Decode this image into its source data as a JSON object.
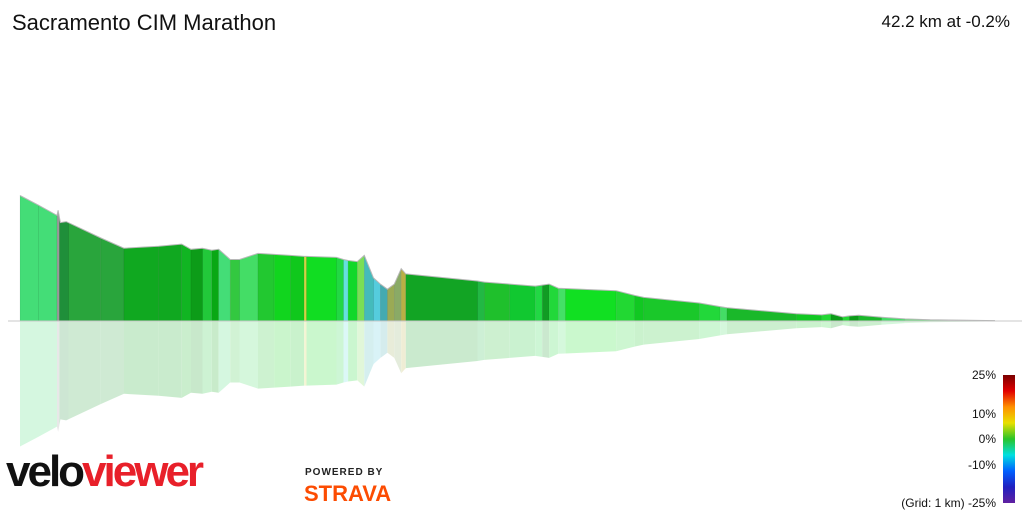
{
  "header": {
    "title": "Sacramento CIM Marathon",
    "summary": "42.2 km at -0.2%"
  },
  "branding": {
    "logo_part1": "velo",
    "logo_part2": "viewer",
    "powered_by": "POWERED BY",
    "strava": "STRAVA"
  },
  "legend": {
    "ticks": [
      "25%",
      "10%",
      "0%",
      "-10%",
      "-25%"
    ],
    "grid_note": "(Grid: 1 km)",
    "colors": [
      "#7a0000",
      "#e10000",
      "#ff9000",
      "#e8e000",
      "#29c429",
      "#00e0e0",
      "#0060ff",
      "#2020c0",
      "#6020a0"
    ]
  },
  "chart_data": {
    "type": "area",
    "distance_km": 42.2,
    "average_gradient_pct": -0.2,
    "segments": [
      {
        "start_km": 0.0,
        "end_km": 0.8,
        "gradient_pct": -1.5,
        "color": "#44dd77"
      },
      {
        "start_km": 0.8,
        "end_km": 1.6,
        "gradient_pct": -0.8,
        "color": "#44dd77"
      },
      {
        "start_km": 1.6,
        "end_km": 1.7,
        "gradient_pct": 3.0,
        "color": "#9a9a9a"
      },
      {
        "start_km": 1.7,
        "end_km": 2.1,
        "gradient_pct": -1.0,
        "color": "#1f8f3a"
      },
      {
        "start_km": 2.1,
        "end_km": 3.5,
        "gradient_pct": -1.3,
        "color": "#29a53c"
      },
      {
        "start_km": 3.5,
        "end_km": 4.5,
        "gradient_pct": -1.5,
        "color": "#29a53c"
      },
      {
        "start_km": 4.5,
        "end_km": 6.0,
        "gradient_pct": -0.1,
        "color": "#10a820"
      },
      {
        "start_km": 6.0,
        "end_km": 7.0,
        "gradient_pct": 0.1,
        "color": "#10a820"
      },
      {
        "start_km": 7.0,
        "end_km": 7.4,
        "gradient_pct": -0.8,
        "color": "#11b522"
      },
      {
        "start_km": 7.4,
        "end_km": 7.9,
        "gradient_pct": 0.2,
        "color": "#0c9c18"
      },
      {
        "start_km": 7.9,
        "end_km": 8.3,
        "gradient_pct": -0.5,
        "color": "#22c83a"
      },
      {
        "start_km": 8.3,
        "end_km": 8.6,
        "gradient_pct": 0.1,
        "color": "#09a814"
      },
      {
        "start_km": 8.6,
        "end_km": 9.1,
        "gradient_pct": -1.0,
        "color": "#44dd77"
      },
      {
        "start_km": 9.1,
        "end_km": 9.5,
        "gradient_pct": 0.0,
        "color": "#33c840"
      },
      {
        "start_km": 9.5,
        "end_km": 10.3,
        "gradient_pct": -0.3,
        "color": "#44dd66"
      },
      {
        "start_km": 10.3,
        "end_km": 11.0,
        "gradient_pct": -0.2,
        "color": "#22c830"
      },
      {
        "start_km": 11.0,
        "end_km": 11.7,
        "gradient_pct": -0.1,
        "color": "#11d51e"
      },
      {
        "start_km": 11.7,
        "end_km": 12.3,
        "gradient_pct": 0.0,
        "color": "#10c81c"
      },
      {
        "start_km": 12.3,
        "end_km": 12.4,
        "gradient_pct": 0.0,
        "color": "#d4d440"
      },
      {
        "start_km": 12.4,
        "end_km": 13.7,
        "gradient_pct": -0.1,
        "color": "#11dd22"
      },
      {
        "start_km": 13.7,
        "end_km": 14.0,
        "gradient_pct": -0.5,
        "color": "#22d844"
      },
      {
        "start_km": 14.0,
        "end_km": 14.2,
        "gradient_pct": -3.0,
        "color": "#66e0dd"
      },
      {
        "start_km": 14.2,
        "end_km": 14.6,
        "gradient_pct": -0.3,
        "color": "#11d82a"
      },
      {
        "start_km": 14.6,
        "end_km": 14.9,
        "gradient_pct": 2.0,
        "color": "#7adf55"
      },
      {
        "start_km": 14.9,
        "end_km": 15.3,
        "gradient_pct": -4.0,
        "color": "#44bbbb"
      },
      {
        "start_km": 15.3,
        "end_km": 15.6,
        "gradient_pct": -4.0,
        "color": "#55ccdd"
      },
      {
        "start_km": 15.6,
        "end_km": 15.9,
        "gradient_pct": -3.0,
        "color": "#44aab0"
      },
      {
        "start_km": 15.9,
        "end_km": 16.2,
        "gradient_pct": 0.5,
        "color": "#9aaa55"
      },
      {
        "start_km": 16.2,
        "end_km": 16.5,
        "gradient_pct": 3.0,
        "color": "#8aaa66"
      },
      {
        "start_km": 16.5,
        "end_km": 16.7,
        "gradient_pct": 1.0,
        "color": "#b8b044"
      },
      {
        "start_km": 16.7,
        "end_km": 19.8,
        "gradient_pct": -0.1,
        "color": "#12a424"
      },
      {
        "start_km": 19.8,
        "end_km": 20.1,
        "gradient_pct": -0.3,
        "color": "#22b844"
      },
      {
        "start_km": 20.1,
        "end_km": 21.2,
        "gradient_pct": -0.1,
        "color": "#1fc02c"
      },
      {
        "start_km": 21.2,
        "end_km": 22.3,
        "gradient_pct": 0.1,
        "color": "#11c830"
      },
      {
        "start_km": 22.3,
        "end_km": 22.6,
        "gradient_pct": -0.3,
        "color": "#22d844"
      },
      {
        "start_km": 22.6,
        "end_km": 22.9,
        "gradient_pct": -0.2,
        "color": "#119c24"
      },
      {
        "start_km": 22.9,
        "end_km": 23.3,
        "gradient_pct": 0.2,
        "color": "#22d83a"
      },
      {
        "start_km": 23.3,
        "end_km": 23.6,
        "gradient_pct": -0.3,
        "color": "#44e066"
      },
      {
        "start_km": 23.6,
        "end_km": 25.8,
        "gradient_pct": 0.0,
        "color": "#11e022"
      },
      {
        "start_km": 25.8,
        "end_km": 26.6,
        "gradient_pct": -0.3,
        "color": "#22d833"
      },
      {
        "start_km": 26.6,
        "end_km": 27.0,
        "gradient_pct": -0.2,
        "color": "#11c822"
      },
      {
        "start_km": 27.0,
        "end_km": 29.4,
        "gradient_pct": -0.2,
        "color": "#1ac82a"
      },
      {
        "start_km": 29.4,
        "end_km": 30.3,
        "gradient_pct": -0.1,
        "color": "#22d83a"
      },
      {
        "start_km": 30.3,
        "end_km": 30.6,
        "gradient_pct": -0.4,
        "color": "#44dd66"
      },
      {
        "start_km": 30.6,
        "end_km": 33.6,
        "gradient_pct": -0.2,
        "color": "#1ab82a"
      },
      {
        "start_km": 33.6,
        "end_km": 34.7,
        "gradient_pct": -0.1,
        "color": "#11c822"
      },
      {
        "start_km": 34.7,
        "end_km": 35.1,
        "gradient_pct": 0.1,
        "color": "#22d833"
      },
      {
        "start_km": 35.1,
        "end_km": 35.6,
        "gradient_pct": -0.2,
        "color": "#0c9c18"
      },
      {
        "start_km": 35.6,
        "end_km": 35.9,
        "gradient_pct": 0.0,
        "color": "#22d833"
      },
      {
        "start_km": 35.9,
        "end_km": 36.3,
        "gradient_pct": 0.1,
        "color": "#0c9c18"
      },
      {
        "start_km": 36.3,
        "end_km": 37.3,
        "gradient_pct": -0.2,
        "color": "#1ab82a"
      },
      {
        "start_km": 37.3,
        "end_km": 38.3,
        "gradient_pct": -0.1,
        "color": "#44dd66"
      },
      {
        "start_km": 38.3,
        "end_km": 42.2,
        "gradient_pct": -0.05,
        "color": "#66dd77"
      }
    ],
    "profile_points": [
      [
        0.0,
        6.12
      ],
      [
        0.8,
        5.65
      ],
      [
        1.6,
        5.15
      ],
      [
        1.65,
        5.4
      ],
      [
        1.75,
        4.8
      ],
      [
        2.0,
        4.85
      ],
      [
        3.5,
        4.05
      ],
      [
        4.5,
        3.55
      ],
      [
        6.0,
        3.65
      ],
      [
        7.0,
        3.75
      ],
      [
        7.4,
        3.5
      ],
      [
        7.9,
        3.55
      ],
      [
        8.3,
        3.45
      ],
      [
        8.6,
        3.5
      ],
      [
        9.1,
        3.0
      ],
      [
        9.5,
        3.0
      ],
      [
        10.3,
        3.3
      ],
      [
        11.0,
        3.25
      ],
      [
        11.7,
        3.2
      ],
      [
        12.3,
        3.15
      ],
      [
        12.4,
        3.15
      ],
      [
        13.7,
        3.1
      ],
      [
        14.0,
        3.0
      ],
      [
        14.2,
        2.95
      ],
      [
        14.6,
        2.9
      ],
      [
        14.9,
        3.2
      ],
      [
        15.3,
        2.1
      ],
      [
        15.6,
        1.8
      ],
      [
        15.9,
        1.55
      ],
      [
        16.2,
        1.8
      ],
      [
        16.5,
        2.55
      ],
      [
        16.7,
        2.3
      ],
      [
        19.8,
        1.95
      ],
      [
        20.1,
        1.9
      ],
      [
        21.2,
        1.8
      ],
      [
        22.3,
        1.7
      ],
      [
        22.6,
        1.75
      ],
      [
        22.9,
        1.8
      ],
      [
        23.3,
        1.6
      ],
      [
        25.8,
        1.48
      ],
      [
        26.6,
        1.25
      ],
      [
        27.0,
        1.15
      ],
      [
        29.4,
        0.88
      ],
      [
        30.3,
        0.7
      ],
      [
        30.6,
        0.65
      ],
      [
        33.6,
        0.35
      ],
      [
        34.7,
        0.3
      ],
      [
        35.1,
        0.35
      ],
      [
        35.6,
        0.2
      ],
      [
        35.9,
        0.25
      ],
      [
        36.3,
        0.28
      ],
      [
        37.3,
        0.18
      ],
      [
        38.3,
        0.1
      ],
      [
        39.4,
        0.06
      ],
      [
        40.2,
        0.05
      ],
      [
        41.0,
        0.04
      ],
      [
        42.2,
        0.02
      ]
    ]
  }
}
